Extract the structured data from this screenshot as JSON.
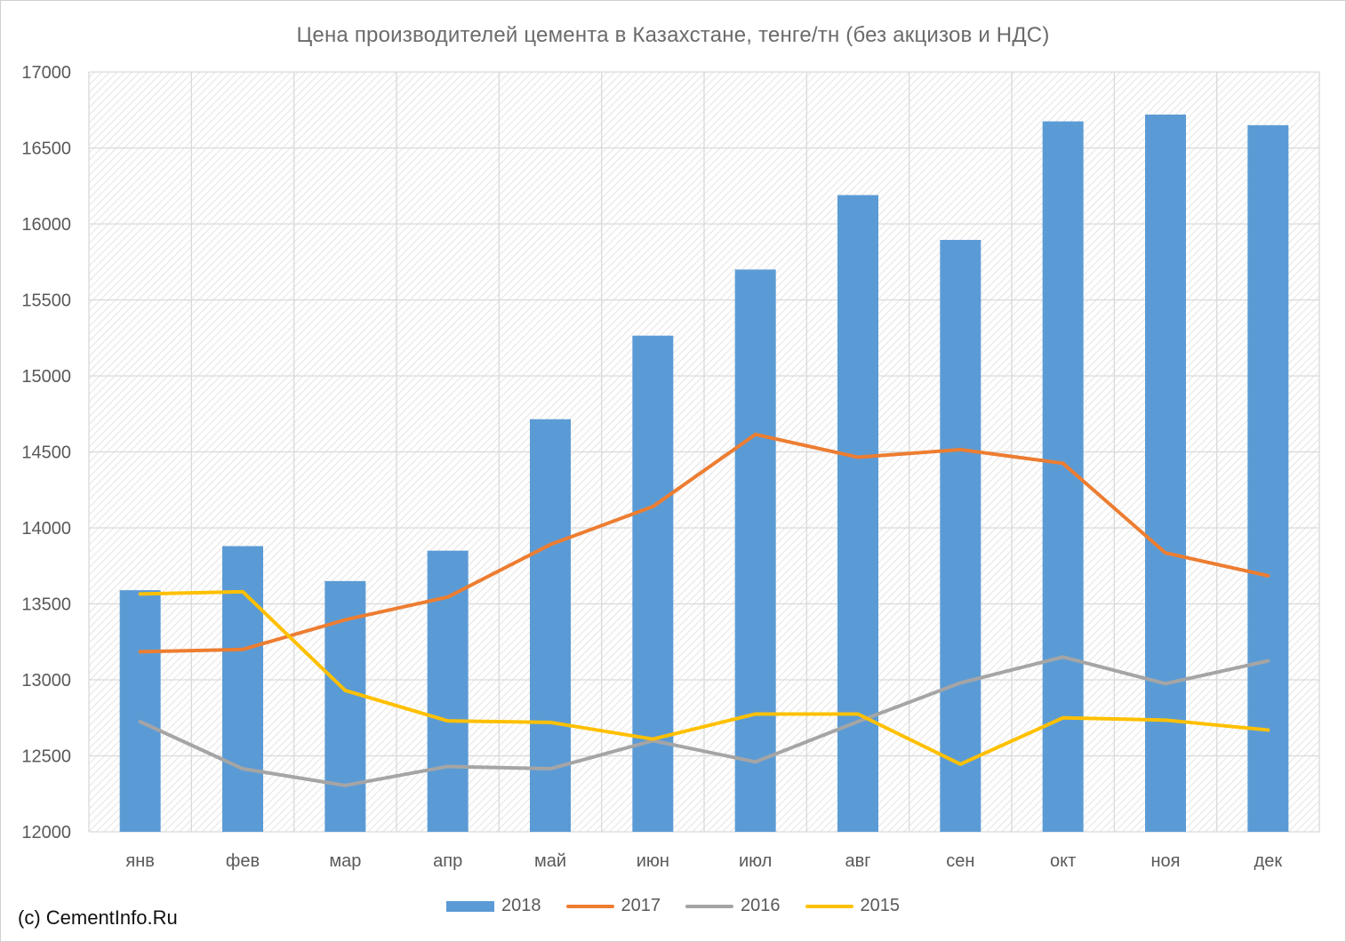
{
  "watermark": "(c) CementInfo.Ru",
  "colors": {
    "2018": "#5b9bd5",
    "2017": "#ed7d31",
    "2016": "#a5a5a5",
    "2015": "#ffc000",
    "grid": "#d9d9d9"
  },
  "chart_data": {
    "type": "bar",
    "title": "Цена производителей цемента в Казахстане, тенге/тн (без акцизов и НДС)",
    "categories": [
      "янв",
      "фев",
      "мар",
      "апр",
      "май",
      "июн",
      "июл",
      "авг",
      "сен",
      "окт",
      "ноя",
      "дек"
    ],
    "ylim": [
      12000,
      17000
    ],
    "yticks": [
      12000,
      12500,
      13000,
      13500,
      14000,
      14500,
      15000,
      15500,
      16000,
      16500,
      17000
    ],
    "grid": true,
    "legend_position": "bottom",
    "series": [
      {
        "name": "2018",
        "type": "bar",
        "values": [
          13590,
          13880,
          13650,
          13850,
          14715,
          15265,
          15700,
          16190,
          15895,
          16675,
          16720,
          16650
        ]
      },
      {
        "name": "2017",
        "type": "line",
        "values": [
          13185,
          13200,
          13395,
          13545,
          13890,
          14140,
          14615,
          14465,
          14515,
          14425,
          13835,
          13685
        ]
      },
      {
        "name": "2016",
        "type": "line",
        "values": [
          12725,
          12415,
          12305,
          12430,
          12415,
          12600,
          12460,
          12725,
          12980,
          13150,
          12975,
          13125
        ]
      },
      {
        "name": "2015",
        "type": "line",
        "values": [
          13565,
          13580,
          12930,
          12730,
          12720,
          12610,
          12775,
          12775,
          12445,
          12750,
          12735,
          12670
        ]
      }
    ]
  }
}
